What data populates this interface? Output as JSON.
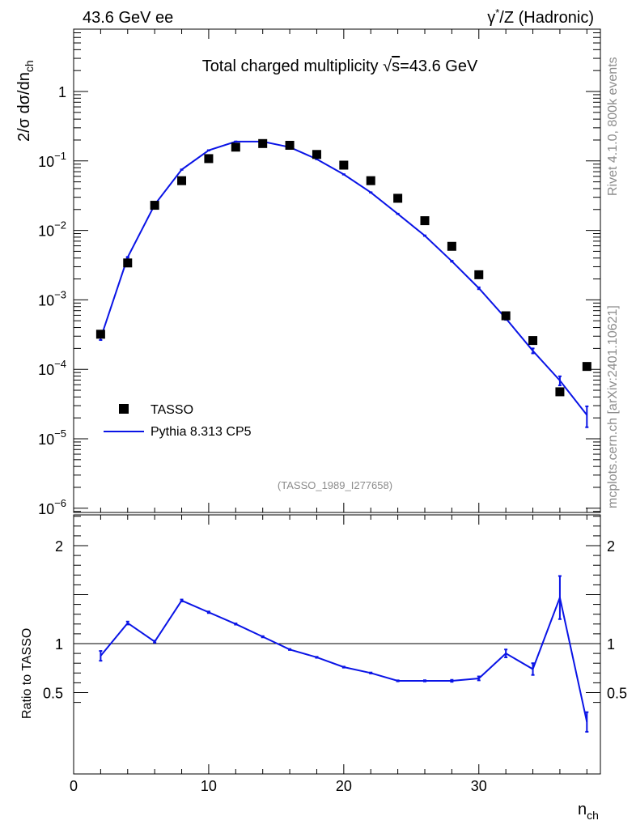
{
  "header": {
    "left": "43.6 GeV ee",
    "right_prefix": "γ",
    "right_sup": "*",
    "right_suffix": "/Z (Hadronic)"
  },
  "side": {
    "rivet": "Rivet 4.1.0,  800k events",
    "mcplots": "mcplots.cern.ch [arXiv:2401.10621]"
  },
  "colors": {
    "mc": "#0a14e6",
    "data": "#000000",
    "watermark": "#8c8c8c"
  },
  "chart_data": {
    "type": "scatter",
    "title_prefix": "Total charged multiplicity ",
    "title_sqrt": "√",
    "title_s": "s",
    "title_suffix": "=43.6 GeV",
    "xlabel_main": "n",
    "xlabel_sub": "ch",
    "ylabel": "2/σ  dσ/dn",
    "ylabel_sub": "ch",
    "ratio_ylabel": "Ratio to TASSO",
    "analysis_id": "(TASSO_1989_I277658)",
    "xlim": [
      0,
      39
    ],
    "ylim_log": [
      1e-06,
      10
    ],
    "ratio_ylim": [
      0.35,
      2.35
    ],
    "x_ticks": [
      "0",
      "10",
      "20",
      "30"
    ],
    "x_tick_values": [
      0,
      10,
      20,
      30
    ],
    "y_ticks": [
      {
        "base": "10",
        "exp": "−6",
        "v": 1e-06
      },
      {
        "base": "10",
        "exp": "−5",
        "v": 1e-05
      },
      {
        "base": "10",
        "exp": "−4",
        "v": 0.0001
      },
      {
        "base": "10",
        "exp": "−3",
        "v": 0.001
      },
      {
        "base": "10",
        "exp": "−2",
        "v": 0.01
      },
      {
        "base": "10",
        "exp": "−1",
        "v": 0.1
      },
      {
        "base": "1",
        "exp": "",
        "v": 1
      }
    ],
    "ratio_ticks": [
      "0.5",
      "1",
      "2"
    ],
    "ratio_tick_values": [
      0.5,
      1,
      2
    ],
    "legend": [
      "TASSO",
      "Pythia 8.313 CP5"
    ],
    "series": [
      {
        "name": "TASSO",
        "x": [
          2,
          4,
          6,
          8,
          10,
          12,
          14,
          16,
          18,
          20,
          22,
          24,
          26,
          28,
          30,
          32,
          34,
          36,
          38
        ],
        "y": [
          0.00032,
          0.0034,
          0.023,
          0.052,
          0.108,
          0.158,
          0.178,
          0.168,
          0.124,
          0.087,
          0.052,
          0.029,
          0.0138,
          0.0059,
          0.0023,
          0.00059,
          0.00026,
          4.75e-05,
          0.00011
        ]
      },
      {
        "name": "Pythia 8.313 CP5",
        "x": [
          2,
          4,
          6,
          8,
          10,
          12,
          14,
          16,
          18,
          20,
          22,
          24,
          26,
          28,
          30,
          32,
          34,
          36,
          38
        ],
        "y": [
          0.00028,
          0.0041,
          0.0235,
          0.075,
          0.142,
          0.19,
          0.19,
          0.158,
          0.106,
          0.064,
          0.0352,
          0.0173,
          0.0084,
          0.0036,
          0.00147,
          0.00054,
          0.000185,
          6.9e-05,
          2.2e-05
        ]
      }
    ],
    "ratio": {
      "x": [
        2,
        4,
        6,
        8,
        10,
        12,
        14,
        16,
        18,
        20,
        22,
        24,
        26,
        28,
        30,
        32,
        34,
        36,
        38
      ],
      "y": [
        0.875,
        1.21,
        1.02,
        1.44,
        1.32,
        1.2,
        1.07,
        0.94,
        0.86,
        0.76,
        0.7,
        0.62,
        0.62,
        0.62,
        0.645,
        0.9,
        0.74,
        1.47,
        0.2
      ],
      "err": [
        0.05,
        0.015,
        0.01,
        0.01,
        0.008,
        0.006,
        0.006,
        0.005,
        0.005,
        0.005,
        0.005,
        0.005,
        0.006,
        0.01,
        0.02,
        0.04,
        0.06,
        0.22,
        0.1
      ]
    }
  }
}
